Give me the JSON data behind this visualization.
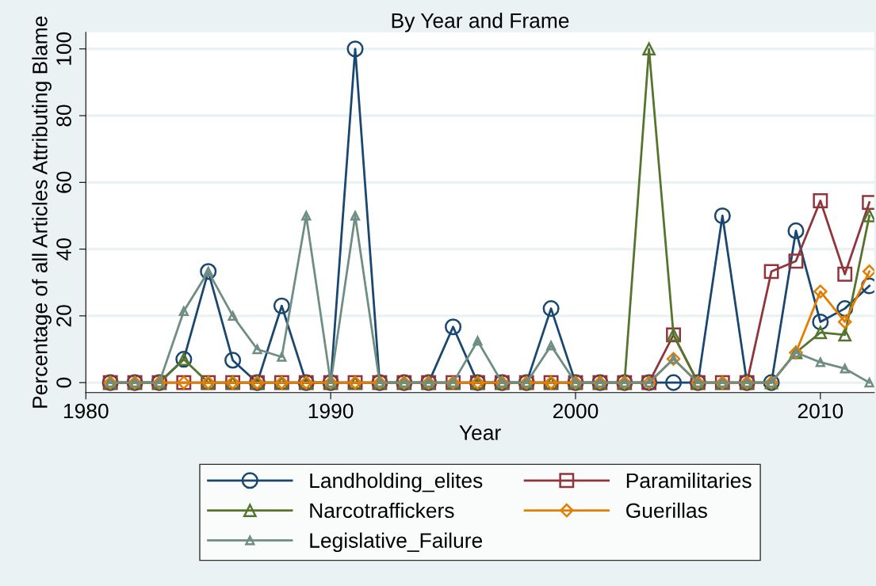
{
  "chart_data": {
    "type": "line",
    "title": "By Year and Frame",
    "xlabel": "Year",
    "ylabel": "Percentage of all Articles Attributing Blame",
    "x": [
      1981,
      1982,
      1983,
      1984,
      1985,
      1986,
      1987,
      1988,
      1989,
      1990,
      1991,
      1992,
      1993,
      1994,
      1995,
      1996,
      1997,
      1998,
      1999,
      2000,
      2001,
      2002,
      2003,
      2004,
      2005,
      2006,
      2007,
      2008,
      2009,
      2010,
      2011,
      2012
    ],
    "series": [
      {
        "name": "Landholding_elites",
        "color": "#1a476f",
        "marker": "circle",
        "values": [
          0,
          0,
          0,
          7,
          33.3,
          6.7,
          0,
          23,
          0,
          0,
          100,
          0,
          0,
          0,
          16.7,
          0,
          0,
          0,
          22.2,
          0,
          0,
          0,
          0,
          0,
          0,
          50,
          0,
          0,
          45.5,
          18.2,
          22.2,
          29
        ]
      },
      {
        "name": "Paramilitaries",
        "color": "#90353b",
        "marker": "square",
        "values": [
          0,
          0,
          0,
          0,
          0,
          0,
          0,
          0,
          0,
          0,
          0,
          0,
          0,
          0,
          0,
          0,
          0,
          0,
          0,
          0,
          0,
          0,
          0,
          14.3,
          0,
          0,
          0,
          33.3,
          36.4,
          54.5,
          32.5,
          54
        ]
      },
      {
        "name": "Narcotraffickers",
        "color": "#55752f",
        "marker": "triangle",
        "values": [
          0,
          0,
          0,
          7,
          0,
          0,
          0,
          0,
          0,
          0,
          0,
          0,
          0,
          0,
          0,
          0,
          0,
          0,
          0,
          0,
          0,
          0,
          100,
          14.3,
          0,
          0,
          0,
          0,
          9,
          15,
          14.3,
          50
        ]
      },
      {
        "name": "Guerillas",
        "color": "#e37e00",
        "marker": "diamond",
        "values": [
          0,
          0,
          0,
          0,
          0,
          0,
          0,
          0,
          0,
          0,
          0,
          0,
          0,
          0,
          0,
          0,
          0,
          0,
          0,
          0,
          0,
          0,
          0,
          7.1,
          0,
          0,
          0,
          0,
          9,
          27.3,
          18.2,
          33.3
        ]
      },
      {
        "name": "Legislative_Failure",
        "color": "#6e8e84",
        "marker": "triangle",
        "values": [
          0,
          0,
          0,
          21.4,
          33.3,
          20,
          10,
          7.7,
          50,
          0,
          50,
          0,
          0,
          0,
          0,
          12.5,
          0,
          0,
          11.1,
          0,
          0,
          0,
          0,
          7.1,
          0,
          0,
          0,
          0,
          9,
          6.1,
          4.2,
          0
        ]
      }
    ],
    "xlim": [
      1980,
      2012.2
    ],
    "xticks": [
      1980,
      1990,
      2000,
      2010
    ],
    "ylim": [
      -3,
      105
    ],
    "yticks": [
      0,
      20,
      40,
      60,
      80,
      100
    ],
    "grid": "y",
    "legend": "bottom",
    "line_style": "solid"
  }
}
